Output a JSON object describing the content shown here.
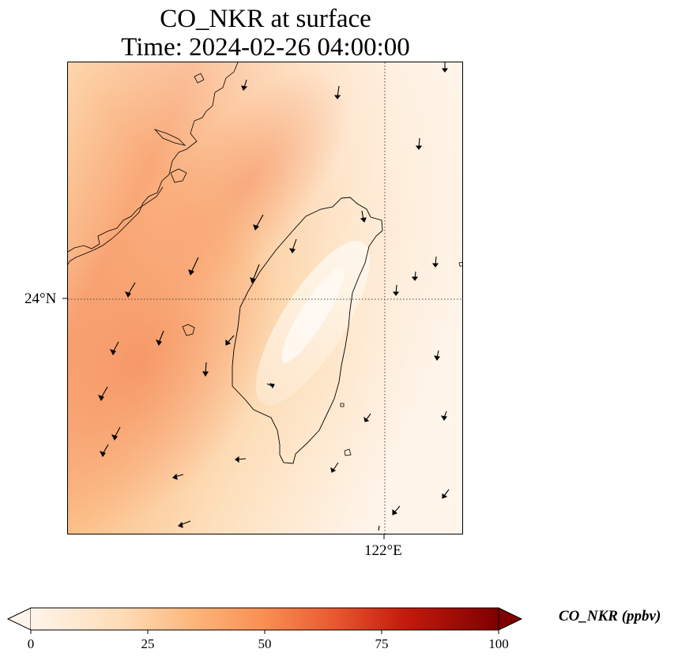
{
  "title": {
    "line1": "CO_NKR at surface",
    "line2": "Time: 2024-02-26 04:00:00"
  },
  "map": {
    "lat_label": "24°N",
    "lon_label": "122°E",
    "gridline_style": "dotted",
    "coastline_color": "#000000"
  },
  "colorbar": {
    "title": "CO_NKR (ppbv)",
    "ticks": [
      "0",
      "25",
      "50",
      "75",
      "100"
    ],
    "colormap": [
      "#fff5eb",
      "#fdd7ac",
      "#fda862",
      "#f16b40",
      "#b80009",
      "#7f0000"
    ],
    "extend": "both"
  }
}
